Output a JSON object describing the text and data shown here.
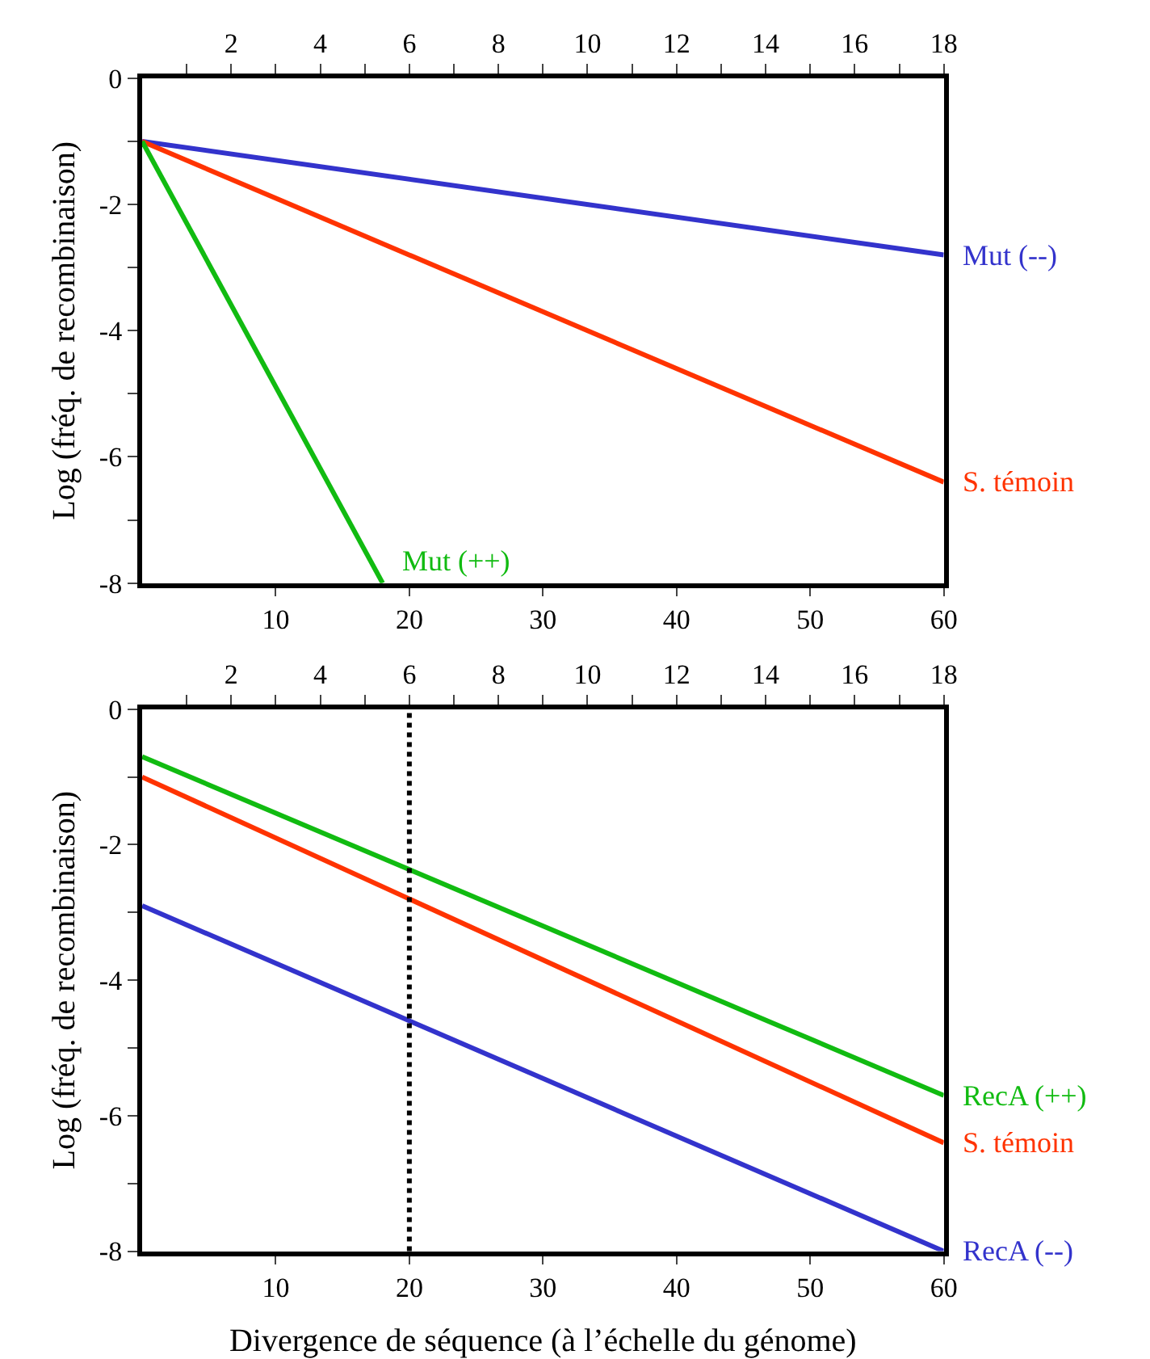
{
  "chart_data": [
    {
      "type": "line",
      "ylabel": "Log (fréq. de recombinaison)",
      "xlim": [
        0,
        60
      ],
      "xticks": [
        10,
        20,
        30,
        40,
        50,
        60
      ],
      "x2lim": [
        0,
        18
      ],
      "x2ticks": [
        {
          "value": 1,
          "label": null
        },
        2,
        {
          "value": 3,
          "label": null
        },
        4,
        {
          "value": 5,
          "label": null
        },
        6,
        {
          "value": 7,
          "label": null
        },
        8,
        {
          "value": 9,
          "label": null
        },
        10,
        {
          "value": 11,
          "label": null
        },
        12,
        {
          "value": 13,
          "label": null
        },
        14,
        {
          "value": 15,
          "label": null
        },
        16,
        {
          "value": 17,
          "label": null
        },
        18
      ],
      "ylim": [
        -8,
        0
      ],
      "yticks": [
        -8,
        {
          "value": -7,
          "label": null
        },
        -6,
        {
          "value": -5,
          "label": null
        },
        -4,
        {
          "value": -3,
          "label": null
        },
        -2,
        {
          "value": -1,
          "label": null
        },
        0
      ],
      "grid": false,
      "legend": false,
      "marker": "none",
      "line_style": "solid",
      "series": [
        {
          "name": "Mut (--)",
          "color": "#3333cc",
          "x": [
            0,
            60
          ],
          "values": [
            -1,
            -2.8
          ]
        },
        {
          "name": "S. témoin",
          "color": "#ff3300",
          "x": [
            0,
            60
          ],
          "values": [
            -1,
            -6.4
          ]
        },
        {
          "name": "Mut (++)",
          "color": "#11bb11",
          "x": [
            0,
            18
          ],
          "values": [
            -1,
            -8
          ]
        }
      ]
    },
    {
      "type": "line",
      "ylabel": "Log (fréq. de recombinaison)",
      "xlabel": "Divergence de séquence (à l’échelle du génome)",
      "xlim": [
        0,
        60
      ],
      "xticks": [
        10,
        20,
        30,
        40,
        50,
        60
      ],
      "x2lim": [
        0,
        18
      ],
      "x2ticks": [
        {
          "value": 1,
          "label": null
        },
        2,
        {
          "value": 3,
          "label": null
        },
        4,
        {
          "value": 5,
          "label": null
        },
        6,
        {
          "value": 7,
          "label": null
        },
        8,
        {
          "value": 9,
          "label": null
        },
        10,
        {
          "value": 11,
          "label": null
        },
        12,
        {
          "value": 13,
          "label": null
        },
        14,
        {
          "value": 15,
          "label": null
        },
        16,
        {
          "value": 17,
          "label": null
        },
        18
      ],
      "ylim": [
        -8,
        0
      ],
      "yticks": [
        -8,
        {
          "value": -7,
          "label": null
        },
        -6,
        {
          "value": -5,
          "label": null
        },
        -4,
        {
          "value": -3,
          "label": null
        },
        -2,
        {
          "value": -1,
          "label": null
        },
        0
      ],
      "grid": false,
      "legend": false,
      "marker": "none",
      "line_style": "solid",
      "ref_lines": [
        {
          "axis": "x",
          "value": 20,
          "color": "#000000",
          "line_style": "dotted"
        }
      ],
      "series": [
        {
          "name": "RecA (++)",
          "color": "#11bb11",
          "x": [
            0,
            60
          ],
          "values": [
            -0.7,
            -5.7
          ]
        },
        {
          "name": "S. témoin",
          "color": "#ff3300",
          "x": [
            0,
            60
          ],
          "values": [
            -1,
            -6.4
          ]
        },
        {
          "name": "RecA (--)",
          "color": "#3333cc",
          "x": [
            0,
            60
          ],
          "values": [
            -2.9,
            -8
          ]
        }
      ]
    }
  ]
}
